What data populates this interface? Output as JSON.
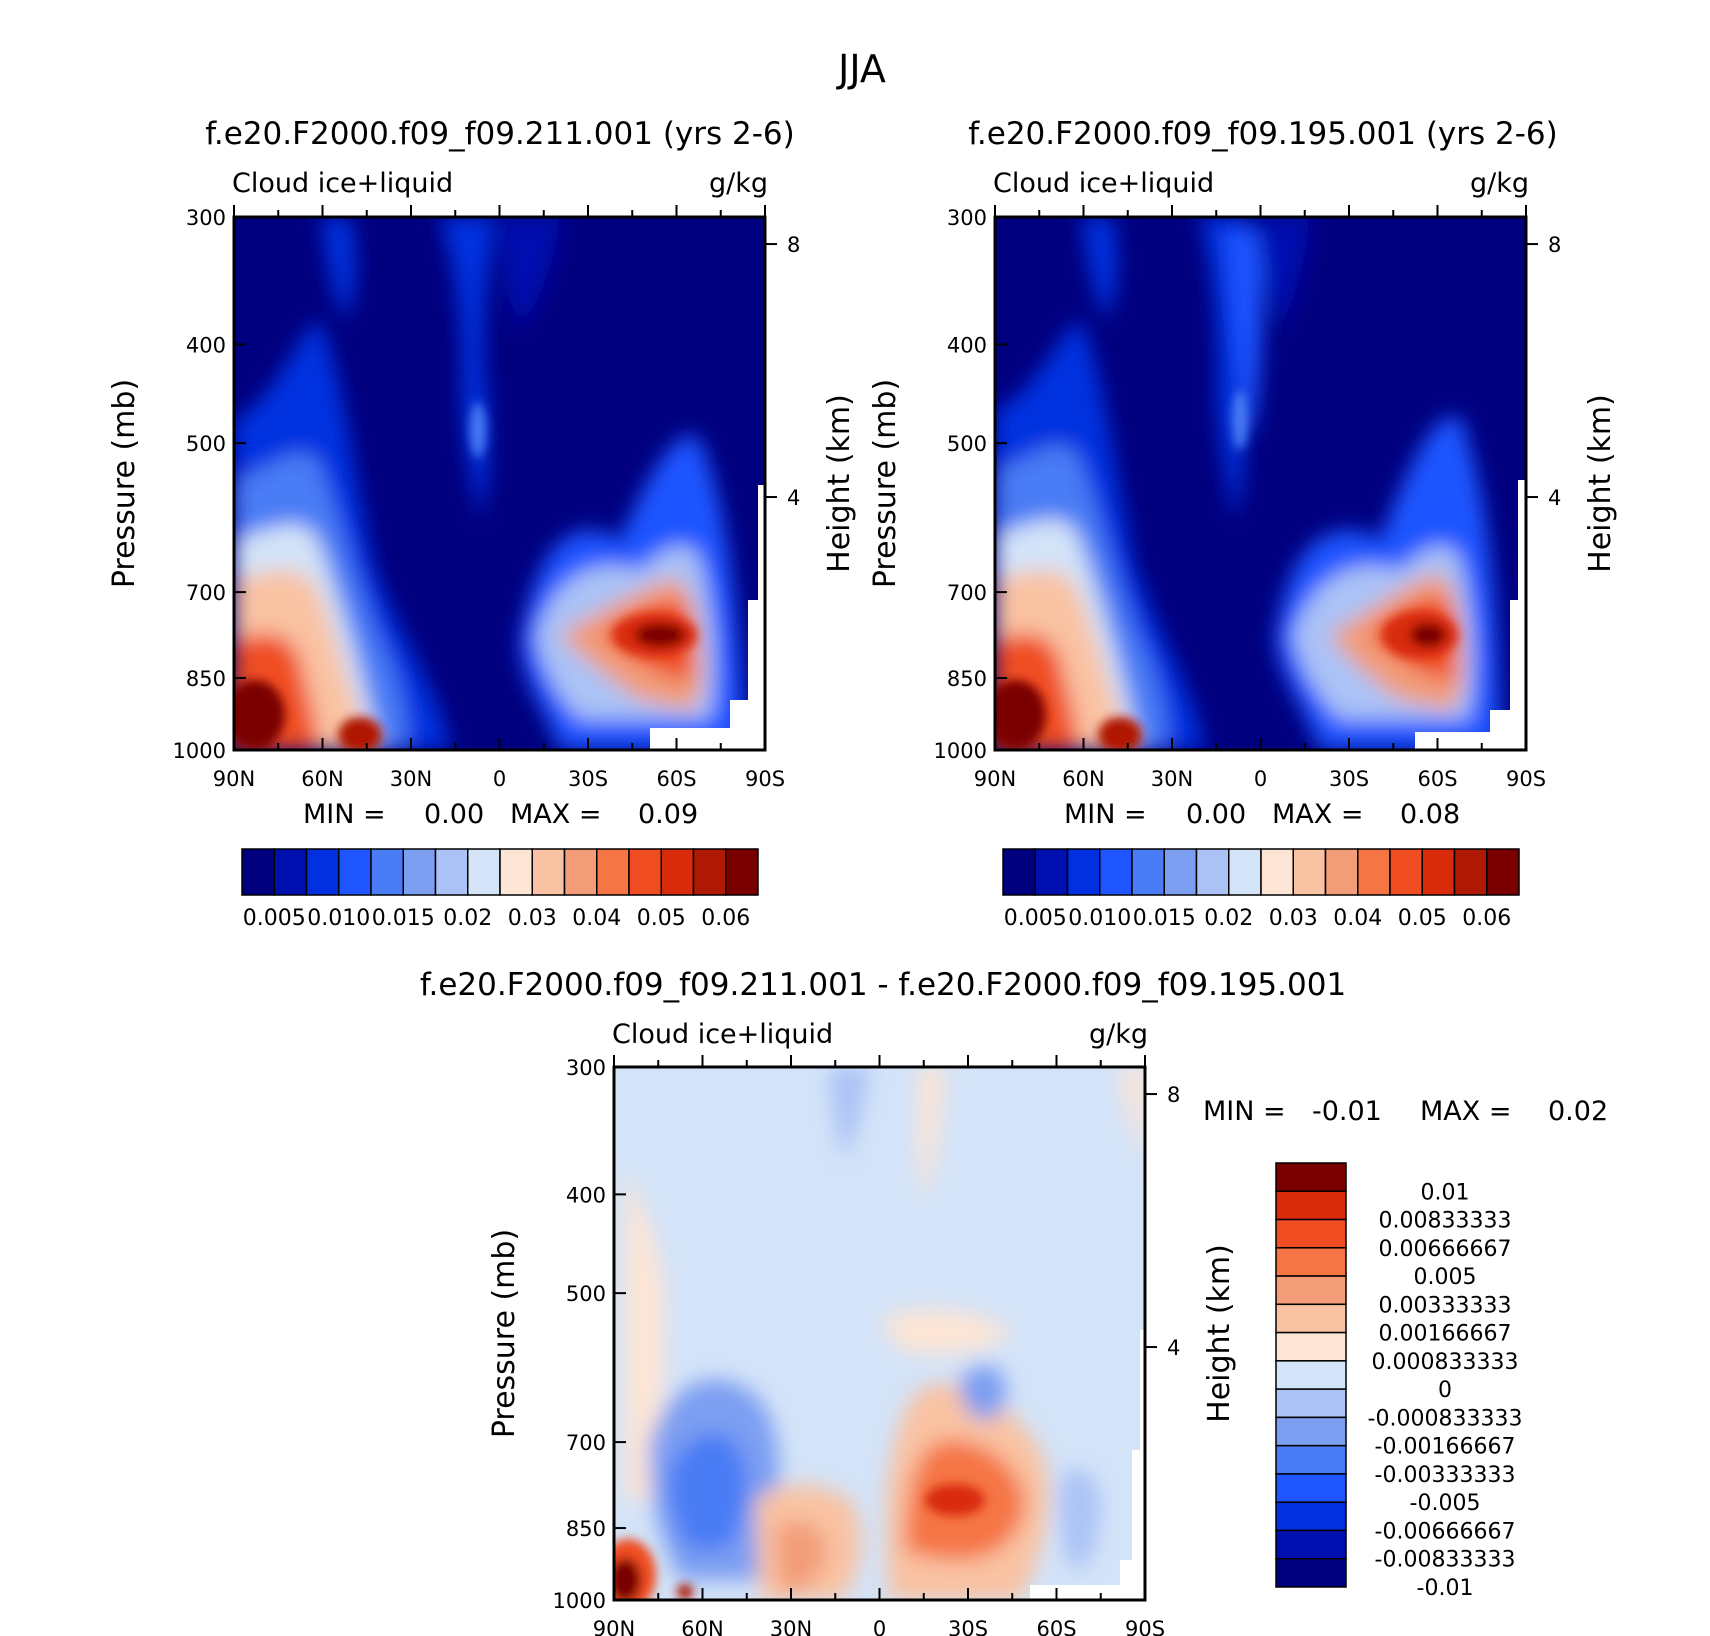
{
  "figure_title": "JJA",
  "colors": {
    "abs_scale": [
      "#00007f",
      "#0010b0",
      "#0030e0",
      "#1e55ff",
      "#4a7cf5",
      "#7d9ff2",
      "#aac2f6",
      "#d3e3f8",
      "#fde5d5",
      "#f9c2a2",
      "#f29c78",
      "#f57544",
      "#f04d22",
      "#d92b0b",
      "#b01904",
      "#7a0000"
    ],
    "diff_scale": [
      "#00007f",
      "#0010b0",
      "#0030e0",
      "#1e55ff",
      "#4a7cf5",
      "#7d9ff2",
      "#aac2f6",
      "#d3e3f8",
      "#fde5d5",
      "#f9c2a2",
      "#f29c78",
      "#f57544",
      "#f04d22",
      "#d92b0b",
      "#7a0000"
    ]
  },
  "panels": [
    {
      "id": "left",
      "title": "f.e20.F2000.f09_f09.211.001 (yrs 2-6)",
      "left_label": "Cloud ice+liquid",
      "right_label": "g/kg",
      "ylabel": "Pressure (mb)",
      "y2label": "Height (km)",
      "stats": {
        "min_label": "MIN =",
        "min_value": "0.00",
        "max_label": "MAX =",
        "max_value": "0.09"
      },
      "colorbar_labels": [
        "0.005",
        "0.010",
        "0.015",
        "0.02",
        "0.03",
        "0.04",
        "0.05",
        "0.06"
      ]
    },
    {
      "id": "right",
      "title": "f.e20.F2000.f09_f09.195.001 (yrs 2-6)",
      "left_label": "Cloud ice+liquid",
      "right_label": "g/kg",
      "ylabel": "Pressure (mb)",
      "y2label": "Height (km)",
      "stats": {
        "min_label": "MIN =",
        "min_value": "0.00",
        "max_label": "MAX =",
        "max_value": "0.08"
      },
      "colorbar_labels": [
        "0.005",
        "0.010",
        "0.015",
        "0.02",
        "0.03",
        "0.04",
        "0.05",
        "0.06"
      ]
    },
    {
      "id": "diff",
      "title": "f.e20.F2000.f09_f09.211.001 - f.e20.F2000.f09_f09.195.001",
      "left_label": "Cloud ice+liquid",
      "right_label": "g/kg",
      "ylabel": "Pressure (mb)",
      "y2label": "Height (km)",
      "stats": {
        "min_label": "MIN =",
        "min_value": "-0.01",
        "max_label": "MAX =",
        "max_value": "0.02"
      },
      "colorbar_labels": [
        "0.01",
        "0.00833333",
        "0.00666667",
        "0.005",
        "0.00333333",
        "0.00166667",
        "0.000833333",
        "0",
        "-0.000833333",
        "-0.00166667",
        "-0.00333333",
        "-0.005",
        "-0.00666667",
        "-0.00833333",
        "-0.01"
      ]
    }
  ],
  "chart_data": [
    {
      "type": "heatmap",
      "title": "f.e20.F2000.f09_f09.211.001 (yrs 2-6)",
      "variable": "Cloud ice+liquid",
      "units": "g/kg",
      "xlabel": "",
      "ylabel": "Pressure (mb)",
      "y2label": "Height (km)",
      "x_ticks": [
        "90N",
        "60N",
        "30N",
        "0",
        "30S",
        "60S",
        "90S"
      ],
      "y_ticks": [
        300,
        400,
        500,
        700,
        850,
        1000
      ],
      "y2_ticks": [
        8,
        4
      ],
      "ylim": [
        1000,
        300
      ],
      "min": 0.0,
      "max": 0.09,
      "features": [
        {
          "lat": 82,
          "p": 960,
          "value": 0.06
        },
        {
          "lat": 47,
          "p": 985,
          "value": 0.06
        },
        {
          "lat": -47,
          "p": 850,
          "value": 0.06
        },
        {
          "lat": -20,
          "p": 850,
          "value": 0.02
        },
        {
          "lat": 65,
          "p": 800,
          "value": 0.03
        },
        {
          "lat": 0,
          "p": 560,
          "value": 0.01
        }
      ]
    },
    {
      "type": "heatmap",
      "title": "f.e20.F2000.f09_f09.195.001 (yrs 2-6)",
      "variable": "Cloud ice+liquid",
      "units": "g/kg",
      "xlabel": "",
      "ylabel": "Pressure (mb)",
      "y2label": "Height (km)",
      "x_ticks": [
        "90N",
        "60N",
        "30N",
        "0",
        "30S",
        "60S",
        "90S"
      ],
      "y_ticks": [
        300,
        400,
        500,
        700,
        850,
        1000
      ],
      "y2_ticks": [
        8,
        4
      ],
      "ylim": [
        1000,
        300
      ],
      "min": 0.0,
      "max": 0.08,
      "features": [
        {
          "lat": 82,
          "p": 960,
          "value": 0.06
        },
        {
          "lat": 47,
          "p": 985,
          "value": 0.06
        },
        {
          "lat": -55,
          "p": 850,
          "value": 0.06
        },
        {
          "lat": -20,
          "p": 850,
          "value": 0.02
        },
        {
          "lat": 65,
          "p": 800,
          "value": 0.03
        },
        {
          "lat": 5,
          "p": 560,
          "value": 0.01
        }
      ]
    },
    {
      "type": "heatmap",
      "title": "f.e20.F2000.f09_f09.211.001 - f.e20.F2000.f09_f09.195.001",
      "variable": "Cloud ice+liquid",
      "units": "g/kg",
      "xlabel": "",
      "ylabel": "Pressure (mb)",
      "y2label": "Height (km)",
      "x_ticks": [
        "90N",
        "60N",
        "30N",
        "0",
        "30S",
        "60S",
        "90S"
      ],
      "y_ticks": [
        300,
        400,
        500,
        700,
        850,
        1000
      ],
      "y2_ticks": [
        8,
        4
      ],
      "ylim": [
        1000,
        300
      ],
      "min": -0.01,
      "max": 0.02,
      "features": [
        {
          "lat": 86,
          "p": 975,
          "value": 0.01
        },
        {
          "lat": -28,
          "p": 850,
          "value": 0.005
        },
        {
          "lat": 15,
          "p": 920,
          "value": 0.003
        },
        {
          "lat": 65,
          "p": 850,
          "value": -0.004
        },
        {
          "lat": -34,
          "p": 760,
          "value": -0.003
        }
      ]
    }
  ]
}
